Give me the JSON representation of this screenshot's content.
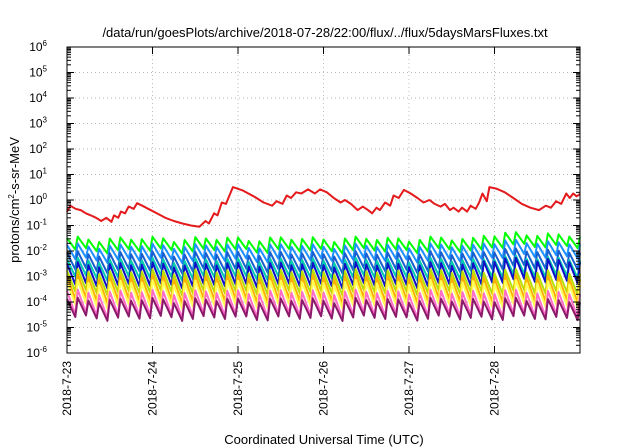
{
  "chart_data": {
    "type": "line",
    "title": "/data/run/goesPlots/archive/2018-07-28/22:00/flux/../flux/5daysMarsFluxes.txt",
    "xlabel": "Coordinated Universal Time (UTC)",
    "ylabel_parts": {
      "pre": "protons/cm",
      "sup": "2",
      "post": "-s-sr-MeV"
    },
    "yscale": "log",
    "ylim_exp": [
      -6,
      6
    ],
    "ytick_labels": [
      {
        "base": "10",
        "exp": "-6"
      },
      {
        "base": "10",
        "exp": "-5"
      },
      {
        "base": "10",
        "exp": "-4"
      },
      {
        "base": "10",
        "exp": "-3"
      },
      {
        "base": "10",
        "exp": "-2"
      },
      {
        "base": "10",
        "exp": "-1"
      },
      {
        "base": "10",
        "exp": "0"
      },
      {
        "base": "10",
        "exp": "1"
      },
      {
        "base": "10",
        "exp": "2"
      },
      {
        "base": "10",
        "exp": "3"
      },
      {
        "base": "10",
        "exp": "4"
      },
      {
        "base": "10",
        "exp": "5"
      },
      {
        "base": "10",
        "exp": "6"
      }
    ],
    "xlim": [
      "2018-07-23",
      "2018-07-29"
    ],
    "xtick_labels": [
      "2018-7-23",
      "2018-7-24",
      "2018-7-25",
      "2018-7-26",
      "2018-7-27",
      "2018-7-28"
    ],
    "grid": true,
    "cycles_per_day": 8,
    "series": [
      {
        "color": "#e41a1c",
        "style": "trend",
        "points": [
          [
            0.0,
            0.35
          ],
          [
            0.04,
            0.6
          ],
          [
            0.1,
            0.45
          ],
          [
            0.16,
            0.4
          ],
          [
            0.22,
            0.3
          ],
          [
            0.28,
            0.25
          ],
          [
            0.34,
            0.2
          ],
          [
            0.4,
            0.15
          ],
          [
            0.46,
            0.2
          ],
          [
            0.52,
            0.14
          ],
          [
            0.55,
            0.25
          ],
          [
            0.6,
            0.2
          ],
          [
            0.63,
            0.35
          ],
          [
            0.68,
            0.3
          ],
          [
            0.72,
            0.55
          ],
          [
            0.78,
            0.45
          ],
          [
            0.82,
            0.75
          ],
          [
            0.88,
            0.6
          ],
          [
            0.95,
            0.45
          ],
          [
            1.05,
            0.3
          ],
          [
            1.15,
            0.2
          ],
          [
            1.25,
            0.15
          ],
          [
            1.35,
            0.12
          ],
          [
            1.45,
            0.1
          ],
          [
            1.55,
            0.09
          ],
          [
            1.62,
            0.15
          ],
          [
            1.66,
            0.12
          ],
          [
            1.72,
            0.3
          ],
          [
            1.76,
            0.25
          ],
          [
            1.81,
            0.8
          ],
          [
            1.86,
            0.7
          ],
          [
            1.94,
            3.2
          ],
          [
            2.05,
            2.4
          ],
          [
            2.2,
            1.3
          ],
          [
            2.3,
            0.8
          ],
          [
            2.4,
            0.6
          ],
          [
            2.45,
            0.9
          ],
          [
            2.52,
            0.7
          ],
          [
            2.57,
            1.5
          ],
          [
            2.62,
            1.2
          ],
          [
            2.68,
            2.0
          ],
          [
            2.74,
            1.8
          ],
          [
            2.82,
            2.6
          ],
          [
            2.9,
            1.8
          ],
          [
            2.96,
            2.6
          ],
          [
            3.04,
            2.0
          ],
          [
            3.12,
            1.2
          ],
          [
            3.2,
            0.8
          ],
          [
            3.25,
            1.0
          ],
          [
            3.32,
            0.7
          ],
          [
            3.4,
            0.4
          ],
          [
            3.46,
            0.55
          ],
          [
            3.52,
            0.4
          ],
          [
            3.57,
            0.3
          ],
          [
            3.62,
            0.5
          ],
          [
            3.66,
            0.4
          ],
          [
            3.72,
            0.8
          ],
          [
            3.78,
            0.6
          ],
          [
            3.82,
            1.5
          ],
          [
            3.88,
            1.2
          ],
          [
            3.94,
            2.5
          ],
          [
            4.02,
            1.8
          ],
          [
            4.1,
            1.2
          ],
          [
            4.17,
            0.8
          ],
          [
            4.24,
            1.0
          ],
          [
            4.3,
            0.7
          ],
          [
            4.37,
            0.55
          ],
          [
            4.42,
            0.7
          ],
          [
            4.48,
            0.4
          ],
          [
            4.52,
            0.5
          ],
          [
            4.58,
            0.35
          ],
          [
            4.62,
            0.5
          ],
          [
            4.68,
            0.35
          ],
          [
            4.72,
            0.6
          ],
          [
            4.78,
            0.45
          ],
          [
            4.82,
            0.8
          ],
          [
            4.86,
            1.8
          ],
          [
            4.91,
            0.9
          ],
          [
            4.94,
            3.2
          ],
          [
            5.02,
            2.8
          ],
          [
            5.12,
            2.0
          ],
          [
            5.22,
            1.2
          ],
          [
            5.32,
            0.7
          ],
          [
            5.42,
            0.5
          ],
          [
            5.52,
            0.4
          ],
          [
            5.6,
            0.6
          ],
          [
            5.66,
            0.5
          ],
          [
            5.72,
            0.9
          ],
          [
            5.78,
            0.7
          ],
          [
            5.84,
            1.8
          ],
          [
            5.88,
            1.2
          ],
          [
            5.92,
            1.8
          ],
          [
            5.96,
            1.4
          ],
          [
            6.0,
            1.7
          ]
        ]
      },
      {
        "color": "#00ff00",
        "style": "sawtooth",
        "base_high": 0.03,
        "drop_ratio": 0.35,
        "late_factor": 1.5
      },
      {
        "color": "#1e90ff",
        "style": "sawtooth",
        "base_high": 0.016,
        "drop_ratio": 0.28,
        "late_factor": 1.4
      },
      {
        "color": "#1a5fd0",
        "style": "sawtooth",
        "base_high": 0.008,
        "drop_ratio": 0.22,
        "late_factor": 1.3
      },
      {
        "color": "#00cdb0",
        "style": "sawtooth",
        "base_high": 0.0045,
        "drop_ratio": 0.2,
        "late_factor": 1.2
      },
      {
        "color": "#1010c8",
        "style": "sawtooth",
        "base_high": 0.003,
        "drop_ratio": 0.15,
        "late_factor": 1.5
      },
      {
        "color": "#b8e000",
        "style": "sawtooth",
        "base_high": 0.0016,
        "drop_ratio": 0.15,
        "late_factor": 1.0
      },
      {
        "color": "#ffb000",
        "style": "sawtooth",
        "base_high": 0.001,
        "drop_ratio": 0.12,
        "late_factor": 1.0
      },
      {
        "color": "#ffff55",
        "style": "sawtooth",
        "base_high": 0.0006,
        "drop_ratio": 0.12,
        "late_factor": 1.0
      },
      {
        "color": "#ff6ec7",
        "style": "sawtooth",
        "base_high": 0.00025,
        "drop_ratio": 0.12,
        "late_factor": 1.0
      },
      {
        "color": "#8b1a6b",
        "style": "sawtooth",
        "base_high": 0.00012,
        "drop_ratio": 0.2,
        "late_factor": 1.0
      }
    ]
  }
}
